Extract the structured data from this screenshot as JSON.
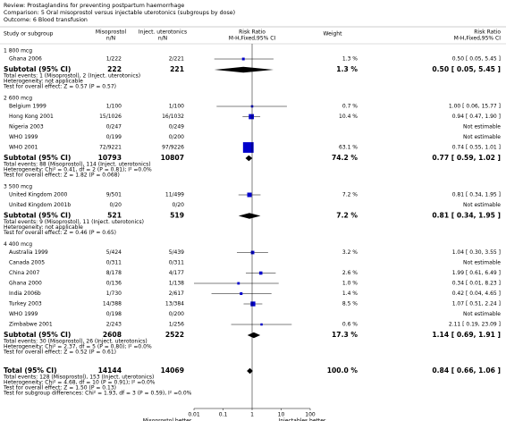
{
  "header": {
    "review": "Review:  Prostaglandins for preventing postpartum haemorrhage",
    "comparison": "Comparison:  5 Oral misoprostol versus injectable uterotonics (subgroups by dose)",
    "outcome": "Outcome:  6 Blood transfusion"
  },
  "chart_data": {
    "type": "forest",
    "log_x": true,
    "xlim": [
      0.01,
      100
    ],
    "xticks": [
      0.01,
      0.1,
      1,
      10,
      100
    ],
    "x_labels": [
      "Misoprostol better",
      "Injectables better"
    ],
    "color": "#0000cc",
    "diamond_color": "#000000",
    "columns": {
      "study": "Study or subgroup",
      "exp": [
        "Misoprostol",
        "n/N"
      ],
      "ctrl": [
        "Inject. uterotonics",
        "n/N"
      ],
      "plot": [
        "Risk Ratio",
        "M-H,Fixed,95% CI"
      ],
      "weight": "Weight",
      "rr": [
        "Risk Ratio",
        "M-H,Fixed,95% CI"
      ]
    },
    "groups": [
      {
        "name": "1 800 mcg",
        "studies": [
          {
            "name": "Ghana 2006",
            "exp": "1/222",
            "ctrl": "2/221",
            "weight": 1.3,
            "weight_label": "1.3 %",
            "rr": 0.5,
            "ci": [
              0.05,
              5.45
            ],
            "rr_label": "0.50 [ 0.05, 5.45 ]"
          }
        ],
        "subtotal": {
          "name": "Subtotal (95% CI)",
          "exp": 222,
          "ctrl": 221,
          "weight_label": "1.3 %",
          "rr": 0.5,
          "ci": [
            0.05,
            5.45
          ],
          "rr_label": "0.50 [ 0.05, 5.45 ]"
        },
        "notes": [
          "Total events: 1 (Misoprostol), 2 (Inject. uterotonics)",
          "Heterogeneity: not applicable",
          "Test for overall effect: Z = 0.57 (P = 0.57)"
        ]
      },
      {
        "name": "2 600 mcg",
        "studies": [
          {
            "name": "Belgium 1999",
            "exp": "1/100",
            "ctrl": "1/100",
            "weight": 0.7,
            "weight_label": "0.7 %",
            "rr": 1.0,
            "ci": [
              0.06,
              15.77
            ],
            "rr_label": "1.00 [ 0.06, 15.77 ]"
          },
          {
            "name": "Hong Kong 2001",
            "exp": "15/1026",
            "ctrl": "16/1032",
            "weight": 10.4,
            "weight_label": "10.4 %",
            "rr": 0.94,
            "ci": [
              0.47,
              1.9
            ],
            "rr_label": "0.94 [ 0.47, 1.90 ]"
          },
          {
            "name": "Nigeria 2003",
            "exp": "0/247",
            "ctrl": "0/249",
            "rr": null,
            "ci": null,
            "rr_label": "Not estimable"
          },
          {
            "name": "WHO 1999",
            "exp": "0/199",
            "ctrl": "0/200",
            "rr": null,
            "ci": null,
            "rr_label": "Not estimable"
          },
          {
            "name": "WHO 2001",
            "exp": "72/9221",
            "ctrl": "97/9226",
            "weight": 63.1,
            "weight_label": "63.1 %",
            "rr": 0.74,
            "ci": [
              0.55,
              1.01
            ],
            "rr_label": "0.74 [ 0.55, 1.01 ]"
          }
        ],
        "subtotal": {
          "name": "Subtotal (95% CI)",
          "exp": 10793,
          "ctrl": 10807,
          "weight_label": "74.2 %",
          "rr": 0.77,
          "ci": [
            0.59,
            1.02
          ],
          "rr_label": "0.77 [ 0.59, 1.02 ]"
        },
        "notes": [
          "Total events: 88 (Misoprostol), 114 (Inject. uterotonics)",
          "Heterogeneity: Chi² = 0.41, df = 2 (P = 0.81); I² =0.0%",
          "Test for overall effect: Z = 1.82 (P = 0.068)"
        ]
      },
      {
        "name": "3 500 mcg",
        "studies": [
          {
            "name": "United Kingdom 2000",
            "exp": "9/501",
            "ctrl": "11/499",
            "weight": 7.2,
            "weight_label": "7.2 %",
            "rr": 0.81,
            "ci": [
              0.34,
              1.95
            ],
            "rr_label": "0.81 [ 0.34, 1.95 ]"
          },
          {
            "name": "United Kingdom 2001b",
            "exp": "0/20",
            "ctrl": "0/20",
            "rr": null,
            "ci": null,
            "rr_label": "Not estimable"
          }
        ],
        "subtotal": {
          "name": "Subtotal (95% CI)",
          "exp": 521,
          "ctrl": 519,
          "weight_label": "7.2 %",
          "rr": 0.81,
          "ci": [
            0.34,
            1.95
          ],
          "rr_label": "0.81 [ 0.34, 1.95 ]"
        },
        "notes": [
          "Total events: 9 (Misoprostol), 11 (Inject. uterotonics)",
          "Heterogeneity: not applicable",
          "Test for overall effect: Z = 0.46 (P = 0.65)"
        ]
      },
      {
        "name": "4 400 mcg",
        "studies": [
          {
            "name": "Australia 1999",
            "exp": "5/424",
            "ctrl": "5/439",
            "weight": 3.2,
            "weight_label": "3.2 %",
            "rr": 1.04,
            "ci": [
              0.3,
              3.55
            ],
            "rr_label": "1.04 [ 0.30, 3.55 ]"
          },
          {
            "name": "Canada 2005",
            "exp": "0/311",
            "ctrl": "0/311",
            "rr": null,
            "ci": null,
            "rr_label": "Not estimable"
          },
          {
            "name": "China 2007",
            "exp": "8/178",
            "ctrl": "4/177",
            "weight": 2.6,
            "weight_label": "2.6 %",
            "rr": 1.99,
            "ci": [
              0.61,
              6.49
            ],
            "rr_label": "1.99 [ 0.61, 6.49 ]"
          },
          {
            "name": "Ghana 2000",
            "exp": "0/136",
            "ctrl": "1/138",
            "weight": 1.0,
            "weight_label": "1.0 %",
            "rr": 0.34,
            "ci": [
              0.01,
              8.23
            ],
            "rr_label": "0.34 [ 0.01, 8.23 ]"
          },
          {
            "name": "India 2006b",
            "exp": "1/730",
            "ctrl": "2/617",
            "weight": 1.4,
            "weight_label": "1.4 %",
            "rr": 0.42,
            "ci": [
              0.04,
              4.65
            ],
            "rr_label": "0.42 [ 0.04, 4.65 ]"
          },
          {
            "name": "Turkey 2003",
            "exp": "14/388",
            "ctrl": "13/384",
            "weight": 8.5,
            "weight_label": "8.5 %",
            "rr": 1.07,
            "ci": [
              0.51,
              2.24
            ],
            "rr_label": "1.07 [ 0.51, 2.24 ]"
          },
          {
            "name": "WHO 1999",
            "exp": "0/198",
            "ctrl": "0/200",
            "rr": null,
            "ci": null,
            "rr_label": "Not estimable"
          },
          {
            "name": "Zimbabwe 2001",
            "exp": "2/243",
            "ctrl": "1/256",
            "weight": 0.6,
            "weight_label": "0.6 %",
            "rr": 2.11,
            "ci": [
              0.19,
              23.09
            ],
            "rr_label": "2.11 [ 0.19, 23.09 ]"
          }
        ],
        "subtotal": {
          "name": "Subtotal (95% CI)",
          "exp": 2608,
          "ctrl": 2522,
          "weight_label": "17.3 %",
          "rr": 1.14,
          "ci": [
            0.69,
            1.91
          ],
          "rr_label": "1.14 [ 0.69, 1.91 ]"
        },
        "notes": [
          "Total events: 30 (Misoprostol), 26 (Inject. uterotonics)",
          "Heterogeneity: Chi² = 2.37, df = 5 (P = 0.80); I² =0.0%",
          "Test for overall effect: Z = 0.52 (P = 0.61)"
        ]
      }
    ],
    "total": {
      "name": "Total (95% CI)",
      "exp": 14144,
      "ctrl": 14069,
      "weight_label": "100.0 %",
      "rr": 0.84,
      "ci": [
        0.66,
        1.06
      ],
      "rr_label": "0.84 [ 0.66, 1.06 ]",
      "notes": [
        "Total events: 128 (Misoprostol), 153 (Inject. uterotonics)",
        "Heterogeneity: Chi² = 4.68, df = 10 (P = 0.91); I² =0.0%",
        "Test for overall effect: Z = 1.50 (P = 0.13)",
        "Test for subgroup differences: Chi² = 1.93, df = 3 (P = 0.59), I² =0.0%"
      ]
    }
  }
}
